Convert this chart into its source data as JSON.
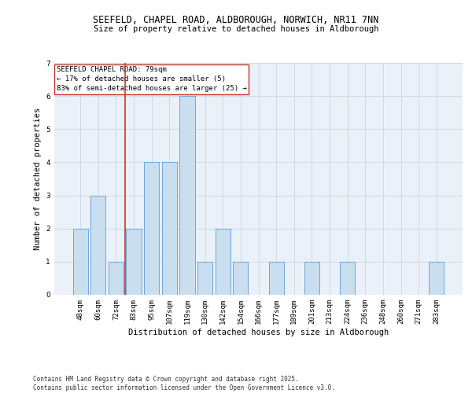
{
  "title_line1": "SEEFELD, CHAPEL ROAD, ALDBOROUGH, NORWICH, NR11 7NN",
  "title_line2": "Size of property relative to detached houses in Aldborough",
  "xlabel": "Distribution of detached houses by size in Aldborough",
  "ylabel": "Number of detached properties",
  "categories": [
    "48sqm",
    "60sqm",
    "72sqm",
    "83sqm",
    "95sqm",
    "107sqm",
    "119sqm",
    "130sqm",
    "142sqm",
    "154sqm",
    "166sqm",
    "177sqm",
    "189sqm",
    "201sqm",
    "213sqm",
    "224sqm",
    "236sqm",
    "248sqm",
    "260sqm",
    "271sqm",
    "283sqm"
  ],
  "values": [
    2,
    3,
    1,
    2,
    4,
    4,
    6,
    1,
    2,
    1,
    0,
    1,
    0,
    1,
    0,
    1,
    0,
    0,
    0,
    0,
    1
  ],
  "bar_color": "#c9dff0",
  "bar_edge_color": "#5b9bd5",
  "grid_color": "#d0d8e4",
  "background_color": "#eaf1f8",
  "vline_color": "#c0392b",
  "annotation_text": "SEEFELD CHAPEL ROAD: 79sqm\n← 17% of detached houses are smaller (5)\n83% of semi-detached houses are larger (25) →",
  "annotation_box_color": "white",
  "annotation_box_edge": "#c0392b",
  "ylim": [
    0,
    7
  ],
  "yticks": [
    0,
    1,
    2,
    3,
    4,
    5,
    6,
    7
  ],
  "footer_text": "Contains HM Land Registry data © Crown copyright and database right 2025.\nContains public sector information licensed under the Open Government Licence v3.0.",
  "title_fontsize": 8.5,
  "subtitle_fontsize": 7.5,
  "axis_label_fontsize": 7.5,
  "tick_fontsize": 6.5,
  "annotation_fontsize": 6.5,
  "footer_fontsize": 5.5
}
